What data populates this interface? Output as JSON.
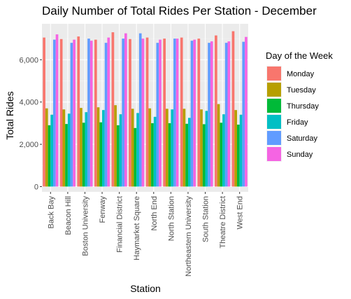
{
  "chart_data": {
    "type": "bar",
    "title": "Daily Number of Total Rides Per Station - December",
    "xlabel": "Station",
    "ylabel": "Total Rides",
    "ylim": [
      -250,
      7700
    ],
    "yticks": [
      0,
      2000,
      4000,
      6000
    ],
    "ytick_labels": [
      "0",
      "2,000",
      "4,000",
      "6,000"
    ],
    "grid": true,
    "legend": {
      "title": "Day of the Week",
      "position": "right"
    },
    "categories": [
      "Back Bay",
      "Beacon Hill",
      "Boston University",
      "Fenway",
      "Financial District",
      "Haymarket Square",
      "North End",
      "North Station",
      "Northeastern University",
      "South Station",
      "Theatre District",
      "West End"
    ],
    "series": [
      {
        "name": "Monday",
        "color": "#F8766D",
        "values": [
          7050,
          6980,
          7100,
          6950,
          7300,
          6980,
          7050,
          7000,
          7050,
          7000,
          7150,
          7350
        ]
      },
      {
        "name": "Tuesday",
        "color": "#B79F00",
        "values": [
          3700,
          3650,
          3720,
          3750,
          3850,
          3680,
          3700,
          3680,
          3680,
          3650,
          3900,
          3620
        ]
      },
      {
        "name": "Thursday",
        "color": "#00BA38",
        "values": [
          2900,
          2960,
          3020,
          3040,
          2900,
          2770,
          3000,
          3000,
          2970,
          2950,
          3020,
          2930
        ]
      },
      {
        "name": "Friday",
        "color": "#00BFC4",
        "values": [
          3400,
          3450,
          3520,
          3620,
          3420,
          3480,
          3300,
          3650,
          3250,
          3580,
          3420,
          3400
        ]
      },
      {
        "name": "Saturday",
        "color": "#619CFF",
        "values": [
          6950,
          6800,
          7000,
          6800,
          7000,
          7250,
          6800,
          7000,
          6900,
          6800,
          6800,
          6850
        ]
      },
      {
        "name": "Sunday",
        "color": "#F564E3",
        "values": [
          7200,
          6950,
          6900,
          7050,
          7250,
          7000,
          6950,
          7000,
          6950,
          6870,
          6870,
          7080
        ]
      }
    ]
  },
  "colors": {
    "panel_background": "#EBEBEB",
    "grid_major": "#FFFFFF",
    "grid_minor": "#F5F5F5",
    "tick_color": "#333333",
    "tick_text": "#4D4D4D"
  }
}
